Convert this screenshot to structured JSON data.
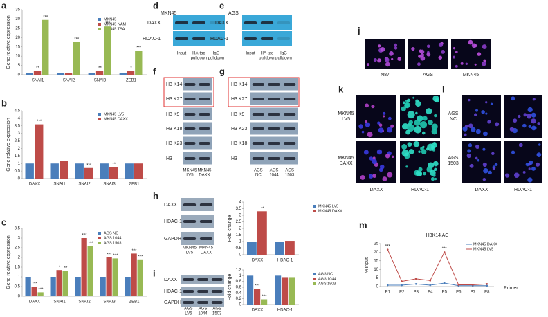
{
  "figure": {
    "blots": [
      {
        "letter": "d",
        "cell": "MKN45",
        "rows": [
          "DAXX",
          "HDAC-1"
        ],
        "lanes": [
          [
            "Input"
          ],
          [
            "HA-tag",
            "pulldown"
          ],
          [
            "IgG",
            "pulldown"
          ]
        ]
      },
      {
        "letter": "e",
        "cell": "AGS",
        "rows": [
          "DAXX",
          "HDAC-1"
        ],
        "lanes": [
          [
            "Input"
          ],
          [
            "HA-tag",
            "pulldown"
          ],
          [
            "IgG",
            "pulldown"
          ]
        ]
      },
      {
        "letter": "f",
        "rows": [
          "H3 K14",
          "H3 K27",
          "H3 K9",
          "H3 K18",
          "H3 K23",
          "H3"
        ],
        "lanes": [
          [
            "MKN45",
            "LV5"
          ],
          [
            "MKN45",
            "DAXX"
          ]
        ]
      },
      {
        "letter": "g",
        "rows": [
          "H3 K14",
          "H3 K27",
          "H3 K9",
          "H3 K23",
          "H3 K18",
          "H3"
        ],
        "lanes": [
          [
            "AGS",
            "NC"
          ],
          [
            "AGS",
            "1044"
          ],
          [
            "AGS",
            "1503"
          ]
        ]
      },
      {
        "letter": "h",
        "rows": [
          "DAXX",
          "HDAC-1",
          "GAPDH"
        ],
        "lanes": [
          [
            "MKN45",
            "LV5"
          ],
          [
            "MKN45",
            "DAXX"
          ]
        ]
      },
      {
        "letter": "i",
        "rows": [
          "DAXX",
          "HDAC-1",
          "GAPDH"
        ],
        "lanes": [
          [
            "AGS",
            "LV5"
          ],
          [
            "AGS",
            "1044"
          ],
          [
            "AGS",
            "1503"
          ]
        ]
      }
    ],
    "images": [
      {
        "letter": "j",
        "columns": [
          "N87",
          "AGS",
          "MKN45"
        ]
      },
      {
        "letter": "k",
        "rows": [
          [
            "MKN45",
            "LV5"
          ],
          [
            "MKN45",
            "DAXX"
          ]
        ],
        "columns": [
          "DAXX",
          "HDAC-1"
        ]
      },
      {
        "letter": "l",
        "rows": [
          [
            "AGS",
            "NC"
          ],
          [
            "AGS",
            "1503"
          ]
        ],
        "columns": [
          "DAXX",
          "HDAC-1"
        ]
      }
    ]
  },
  "chart_data": [
    {
      "type": "bar",
      "letter": "a",
      "y_label": "Gene relative expression",
      "categories": [
        "SNAI1",
        "SNAI2",
        "SNAI3",
        "ZEB1"
      ],
      "series": [
        {
          "name": "MKN45",
          "color": "#4a7ebb",
          "values": [
            1,
            1,
            1,
            1
          ]
        },
        {
          "name": "MKN45 NAM",
          "color": "#be4b48",
          "values": [
            2,
            1,
            2,
            2
          ],
          "significance": [
            "**",
            null,
            "**",
            "*"
          ]
        },
        {
          "name": "MKN45 TSA",
          "color": "#98b954",
          "values": [
            29.5,
            17.5,
            26,
            13
          ],
          "significance": [
            "***",
            "***",
            "***",
            "***"
          ]
        }
      ],
      "ylim": [
        0,
        35
      ],
      "yticks": [
        0,
        5,
        10,
        15,
        20,
        25,
        30,
        35
      ]
    },
    {
      "type": "bar",
      "letter": "b",
      "y_label": "Gene relative expression",
      "categories": [
        "DAXX",
        "SNAI1",
        "SNAI2",
        "SNAI3",
        "ZEB1"
      ],
      "series": [
        {
          "name": "MKN45 LV5",
          "color": "#4a7ebb",
          "values": [
            1,
            1,
            1,
            1,
            1
          ]
        },
        {
          "name": "MKN45 DAXX",
          "color": "#be4b48",
          "values": [
            3.6,
            1.15,
            0.7,
            0.75,
            1.0
          ],
          "significance": [
            "***",
            null,
            "***",
            "**",
            null
          ]
        }
      ],
      "ylim": [
        0,
        4.5
      ],
      "yticks": [
        0,
        0.5,
        1,
        1.5,
        2,
        2.5,
        3,
        3.5,
        4,
        4.5
      ]
    },
    {
      "type": "bar",
      "letter": "c",
      "y_label": "Gene relative expression",
      "categories": [
        "DAXX",
        "SNAI1",
        "SNAI2",
        "SNAI3",
        "ZEB1"
      ],
      "series": [
        {
          "name": "AGS NC",
          "color": "#4a7ebb",
          "values": [
            1,
            1,
            1,
            1,
            1
          ]
        },
        {
          "name": "AGS 1044",
          "color": "#be4b48",
          "values": [
            0.5,
            1.35,
            3.0,
            2.0,
            2.2
          ],
          "significance": [
            "***",
            "*",
            "***",
            "***",
            "***"
          ]
        },
        {
          "name": "AGS 1503",
          "color": "#98b954",
          "values": [
            0.2,
            1.3,
            2.6,
            1.95,
            1.9
          ],
          "significance": [
            "***",
            "**",
            "***",
            "***",
            "***"
          ]
        }
      ],
      "ylim": [
        0,
        3.5
      ],
      "yticks": [
        0,
        0.5,
        1,
        1.5,
        2,
        2.5,
        3,
        3.5
      ]
    },
    {
      "type": "bar",
      "y_label": "Fold change",
      "categories": [
        "DAXX",
        "HDAC-1"
      ],
      "series": [
        {
          "name": "MKN45 LV5",
          "color": "#4a7ebb",
          "values": [
            1,
            1
          ]
        },
        {
          "name": "MKN45 DAXX",
          "color": "#be4b48",
          "values": [
            3.3,
            1.05
          ],
          "significance": [
            "**",
            null
          ]
        }
      ],
      "ylim": [
        0,
        4
      ],
      "yticks": [
        0,
        0.5,
        1,
        1.5,
        2,
        2.5,
        3,
        3.5,
        4
      ]
    },
    {
      "type": "bar",
      "y_label": "Fold change",
      "categories": [
        "DAXX",
        "HDAC-1"
      ],
      "series": [
        {
          "name": "AGS NC",
          "color": "#4a7ebb",
          "values": [
            1,
            1
          ]
        },
        {
          "name": "AGS 1044",
          "color": "#be4b48",
          "values": [
            0.55,
            0.95
          ],
          "significance": [
            "***",
            null
          ]
        },
        {
          "name": "AGS 1503",
          "color": "#98b954",
          "values": [
            0.18,
            0.95
          ],
          "significance": [
            "***",
            null
          ]
        }
      ],
      "ylim": [
        0,
        1.2
      ],
      "yticks": [
        0,
        0.2,
        0.4,
        0.6,
        0.8,
        1,
        1.2
      ]
    },
    {
      "type": "line",
      "letter": "m",
      "title": "H3K14 AC",
      "y_label": "%Input",
      "x_label": "Primer",
      "categories": [
        "P1",
        "P2",
        "P3",
        "P4",
        "P5",
        "P6",
        "P7",
        "P8"
      ],
      "series": [
        {
          "name": "MKN45 DAXX",
          "color": "#4a7ebb",
          "values": [
            0.8,
            0.8,
            1.5,
            0.8,
            2,
            0.5,
            0.5,
            0.5
          ]
        },
        {
          "name": "MKN45 LV5",
          "color": "#be4b48",
          "values": [
            21.5,
            3,
            4.5,
            3.5,
            20,
            1,
            1,
            1.5
          ],
          "significance": [
            "***",
            null,
            null,
            null,
            "***",
            null,
            null,
            null
          ]
        }
      ],
      "ylim": [
        0,
        25
      ],
      "yticks": [
        0,
        5,
        10,
        15,
        20,
        25
      ]
    }
  ]
}
